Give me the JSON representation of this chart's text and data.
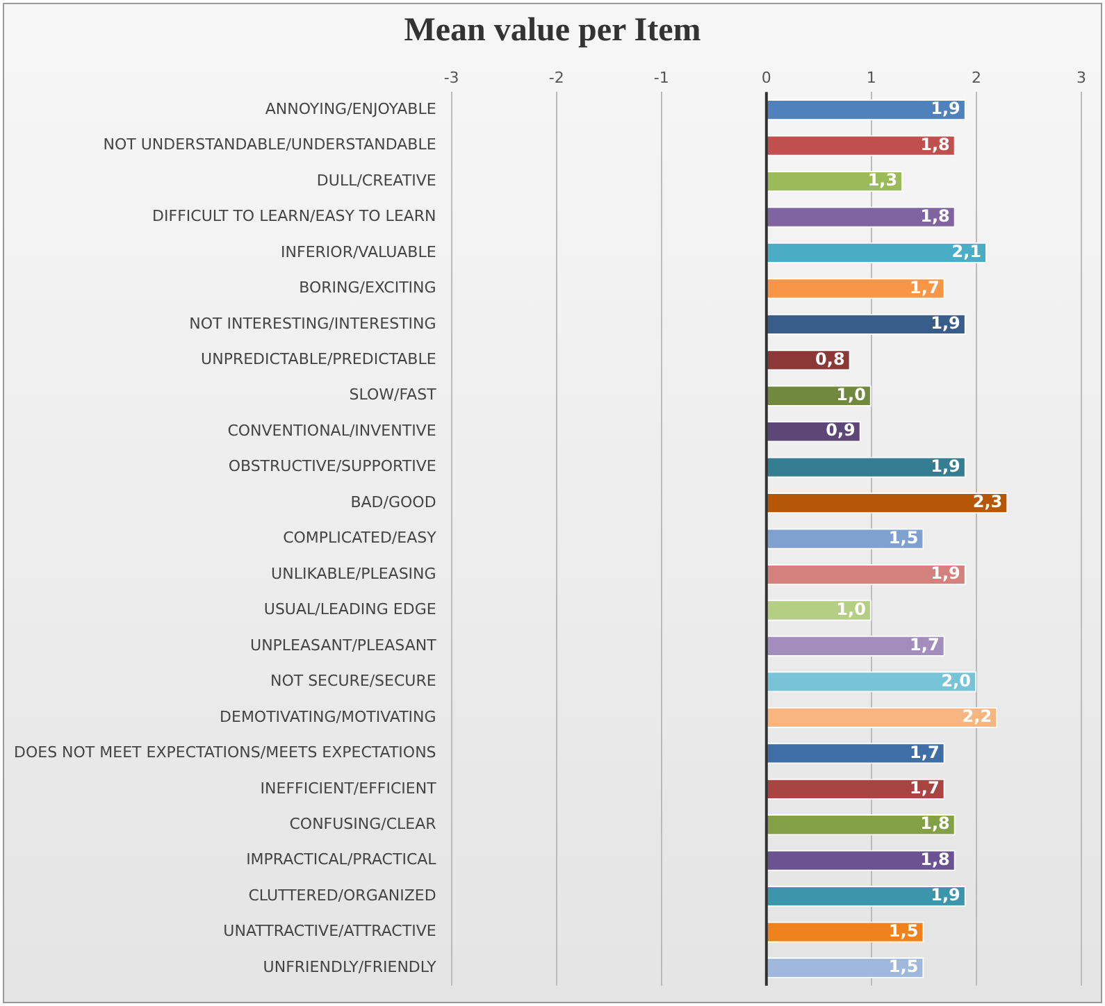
{
  "chart_data": {
    "type": "bar",
    "orientation": "horizontal",
    "title": "Mean value per Item",
    "categories": [
      "ANNOYING/ENJOYABLE",
      "NOT UNDERSTANDABLE/UNDERSTANDABLE",
      "DULL/CREATIVE",
      "DIFFICULT TO LEARN/EASY TO LEARN",
      "INFERIOR/VALUABLE",
      "BORING/EXCITING",
      "NOT INTERESTING/INTERESTING",
      "UNPREDICTABLE/PREDICTABLE",
      "SLOW/FAST",
      "CONVENTIONAL/INVENTIVE",
      "OBSTRUCTIVE/SUPPORTIVE",
      "BAD/GOOD",
      "COMPLICATED/EASY",
      "UNLIKABLE/PLEASING",
      "USUAL/LEADING EDGE",
      "UNPLEASANT/PLEASANT",
      "NOT SECURE/SECURE",
      "DEMOTIVATING/MOTIVATING",
      "DOES NOT MEET EXPECTATIONS/MEETS EXPECTATIONS",
      "INEFFICIENT/EFFICIENT",
      "CONFUSING/CLEAR",
      "IMPRACTICAL/PRACTICAL",
      "CLUTTERED/ORGANIZED",
      "UNATTRACTIVE/ATTRACTIVE",
      "UNFRIENDLY/FRIENDLY"
    ],
    "values": [
      1.9,
      1.8,
      1.3,
      1.8,
      2.1,
      1.7,
      1.9,
      0.8,
      1.0,
      0.9,
      1.9,
      2.3,
      1.5,
      1.9,
      1.0,
      1.7,
      2.0,
      2.2,
      1.7,
      1.7,
      1.8,
      1.8,
      1.9,
      1.5,
      1.5
    ],
    "value_labels": [
      "1,9",
      "1,8",
      "1,3",
      "1,8",
      "2,1",
      "1,7",
      "1,9",
      "0,8",
      "1,0",
      "0,9",
      "1,9",
      "2,3",
      "1,5",
      "1,9",
      "1,0",
      "1,7",
      "2,0",
      "2,2",
      "1,7",
      "1,7",
      "1,8",
      "1,8",
      "1,9",
      "1,5",
      "1,5"
    ],
    "colors": [
      "#4f81bd",
      "#c0504d",
      "#9bbb59",
      "#8064a2",
      "#4bacc6",
      "#f79646",
      "#385d8a",
      "#8c3836",
      "#71893f",
      "#5c4776",
      "#357d91",
      "#b65708",
      "#7ea1d0",
      "#d4807d",
      "#b4cf84",
      "#a28dbd",
      "#79c3d6",
      "#f9b57f",
      "#3f6ea6",
      "#a84542",
      "#83a047",
      "#6a5390",
      "#3c96ab",
      "#f0821d",
      "#a0b8dc"
    ],
    "xlim": [
      -3,
      3
    ],
    "xticks": [
      -3,
      -2,
      -1,
      0,
      1,
      2,
      3
    ],
    "grid": "x"
  }
}
